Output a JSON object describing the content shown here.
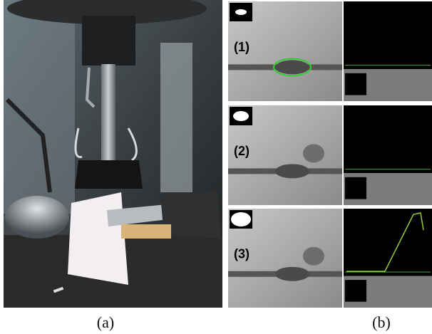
{
  "panels": {
    "a": {
      "caption": "(a)"
    },
    "b": {
      "caption": "(b)",
      "frames": [
        {
          "label": "(1)"
        },
        {
          "label": "(2)"
        },
        {
          "label": "(3)"
        }
      ]
    }
  }
}
